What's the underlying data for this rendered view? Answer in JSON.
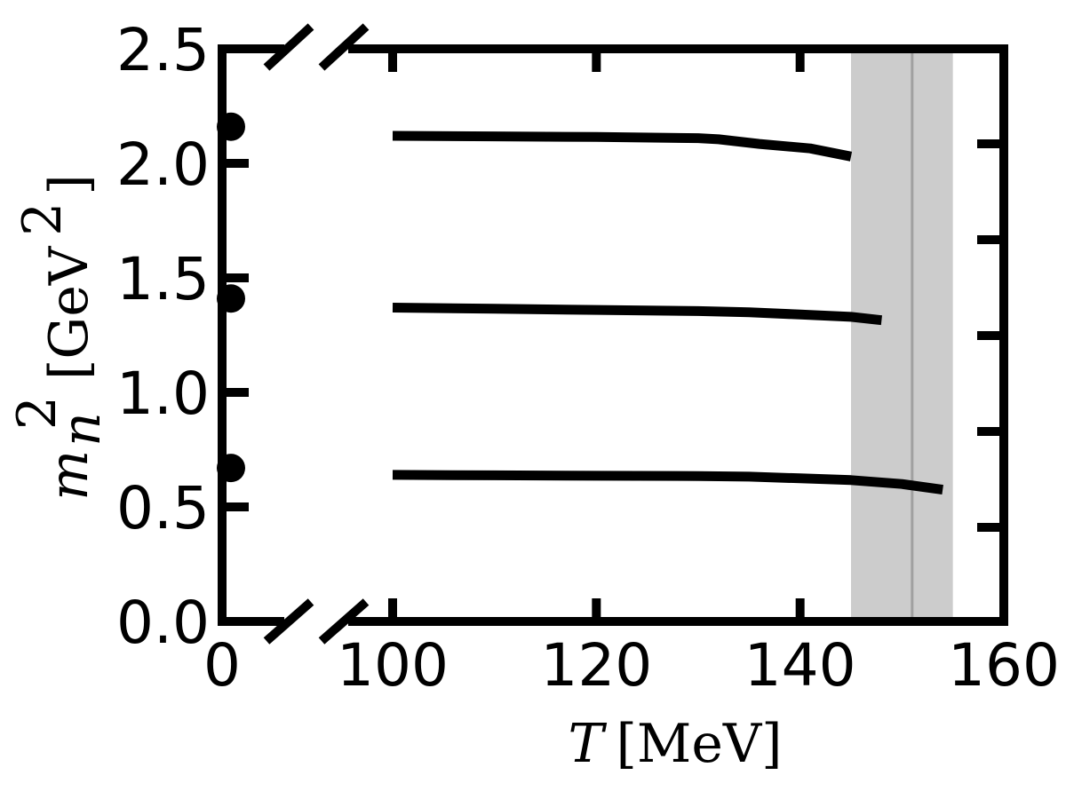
{
  "chart_data": {
    "type": "line",
    "xlabel": "T [MeV]",
    "ylabel": "m_n^2 [GeV^2]",
    "xlabel_parts": {
      "symbol": "T",
      "unit": "[MeV]"
    },
    "ylabel_parts": {
      "symbol": "m",
      "subscript": "n",
      "superscript": "2",
      "unit_open": "[GeV",
      "unit_sup": "2",
      "unit_close": "]"
    },
    "xlim": [
      0,
      160
    ],
    "x_axis_break": "between 0 and 100",
    "ylim": [
      0,
      2.5
    ],
    "x_ticks": [
      "0",
      "100",
      "120",
      "140",
      "160"
    ],
    "y_ticks": [
      "0.0",
      "0.5",
      "1.0",
      "1.5",
      "2.0",
      "2.5"
    ],
    "grid": false,
    "color": "#000000",
    "zero_temperature_points": [
      {
        "x": 0,
        "y": 0.67
      },
      {
        "x": 0,
        "y": 1.41
      },
      {
        "x": 0,
        "y": 2.16
      }
    ],
    "series": [
      {
        "x": [
          100,
          110,
          120,
          130,
          135,
          140,
          145,
          150,
          154
        ],
        "y": [
          0.64,
          0.638,
          0.636,
          0.635,
          0.632,
          0.625,
          0.617,
          0.6,
          0.575
        ]
      },
      {
        "x": [
          100,
          110,
          120,
          130,
          135,
          140,
          145,
          148
        ],
        "y": [
          1.37,
          1.365,
          1.36,
          1.355,
          1.35,
          1.34,
          1.33,
          1.315
        ]
      },
      {
        "x": [
          100,
          110,
          120,
          130,
          132,
          136,
          141,
          145
        ],
        "y": [
          2.12,
          2.118,
          2.115,
          2.11,
          2.105,
          2.085,
          2.065,
          2.03
        ]
      }
    ],
    "band": {
      "x_range": [
        145,
        155
      ],
      "color": "#cccccc"
    },
    "vertical_line": {
      "x": 151,
      "color": "#a0a0a0"
    }
  }
}
